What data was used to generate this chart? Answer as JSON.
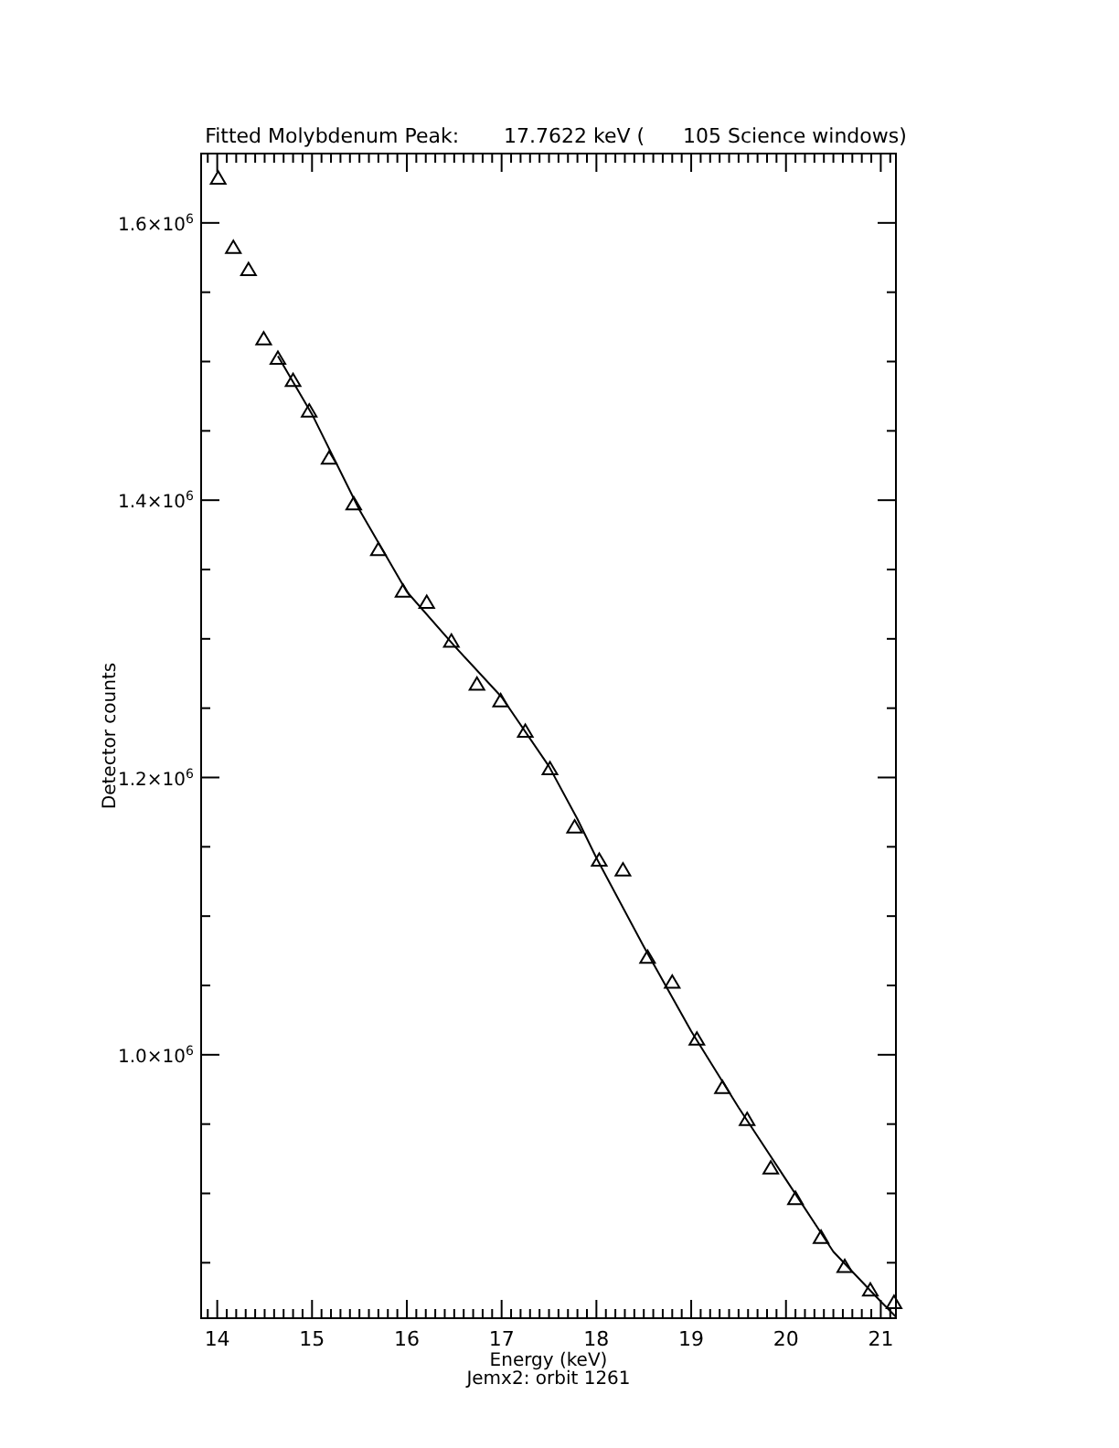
{
  "chart_data": {
    "type": "scatter",
    "title": "Fitted Molybdenum Peak:       17.7622 keV (      105 Science windows)",
    "xlabel": "Energy (keV)",
    "ylabel": "Detector counts",
    "annotations": [
      "Jemx2: orbit 1261"
    ],
    "xlim": [
      13.83,
      21.16
    ],
    "ylim": [
      810000,
      1650000
    ],
    "xticks": [
      {
        "value": 13.9,
        "label": null
      },
      14,
      {
        "value": 14.1,
        "label": null
      },
      {
        "value": 14.2,
        "label": null
      },
      {
        "value": 14.3,
        "label": null
      },
      {
        "value": 14.4,
        "label": null
      },
      {
        "value": 14.5,
        "label": null
      },
      {
        "value": 14.6,
        "label": null
      },
      {
        "value": 14.7,
        "label": null
      },
      {
        "value": 14.8,
        "label": null
      },
      {
        "value": 14.9,
        "label": null
      },
      15,
      {
        "value": 15.1,
        "label": null
      },
      {
        "value": 15.2,
        "label": null
      },
      {
        "value": 15.3,
        "label": null
      },
      {
        "value": 15.4,
        "label": null
      },
      {
        "value": 15.5,
        "label": null
      },
      {
        "value": 15.6,
        "label": null
      },
      {
        "value": 15.7,
        "label": null
      },
      {
        "value": 15.8,
        "label": null
      },
      {
        "value": 15.9,
        "label": null
      },
      16,
      {
        "value": 16.1,
        "label": null
      },
      {
        "value": 16.2,
        "label": null
      },
      {
        "value": 16.3,
        "label": null
      },
      {
        "value": 16.4,
        "label": null
      },
      {
        "value": 16.5,
        "label": null
      },
      {
        "value": 16.6,
        "label": null
      },
      {
        "value": 16.7,
        "label": null
      },
      {
        "value": 16.8,
        "label": null
      },
      {
        "value": 16.9,
        "label": null
      },
      17,
      {
        "value": 17.1,
        "label": null
      },
      {
        "value": 17.2,
        "label": null
      },
      {
        "value": 17.3,
        "label": null
      },
      {
        "value": 17.4,
        "label": null
      },
      {
        "value": 17.5,
        "label": null
      },
      {
        "value": 17.6,
        "label": null
      },
      {
        "value": 17.7,
        "label": null
      },
      {
        "value": 17.8,
        "label": null
      },
      {
        "value": 17.9,
        "label": null
      },
      18,
      {
        "value": 18.1,
        "label": null
      },
      {
        "value": 18.2,
        "label": null
      },
      {
        "value": 18.3,
        "label": null
      },
      {
        "value": 18.4,
        "label": null
      },
      {
        "value": 18.5,
        "label": null
      },
      {
        "value": 18.6,
        "label": null
      },
      {
        "value": 18.7,
        "label": null
      },
      {
        "value": 18.8,
        "label": null
      },
      {
        "value": 18.9,
        "label": null
      },
      19,
      {
        "value": 19.1,
        "label": null
      },
      {
        "value": 19.2,
        "label": null
      },
      {
        "value": 19.3,
        "label": null
      },
      {
        "value": 19.4,
        "label": null
      },
      {
        "value": 19.5,
        "label": null
      },
      {
        "value": 19.6,
        "label": null
      },
      {
        "value": 19.7,
        "label": null
      },
      {
        "value": 19.8,
        "label": null
      },
      {
        "value": 19.9,
        "label": null
      },
      20,
      {
        "value": 20.1,
        "label": null
      },
      {
        "value": 20.2,
        "label": null
      },
      {
        "value": 20.3,
        "label": null
      },
      {
        "value": 20.4,
        "label": null
      },
      {
        "value": 20.5,
        "label": null
      },
      {
        "value": 20.6,
        "label": null
      },
      {
        "value": 20.7,
        "label": null
      },
      {
        "value": 20.8,
        "label": null
      },
      {
        "value": 20.9,
        "label": null
      },
      21,
      {
        "value": 21.1,
        "label": null
      }
    ],
    "yticks": [
      {
        "value": 850000,
        "label": null
      },
      {
        "value": 900000,
        "label": null
      },
      {
        "value": 950000,
        "label": null
      },
      {
        "value": 1000000,
        "label": "1.0×10$^{6}$"
      },
      {
        "value": 1050000,
        "label": null
      },
      {
        "value": 1100000,
        "label": null
      },
      {
        "value": 1150000,
        "label": null
      },
      {
        "value": 1200000,
        "label": "1.2×10$^{6}$"
      },
      {
        "value": 1250000,
        "label": null
      },
      {
        "value": 1300000,
        "label": null
      },
      {
        "value": 1350000,
        "label": null
      },
      {
        "value": 1400000,
        "label": "1.4×10$^{6}$"
      },
      {
        "value": 1450000,
        "label": null
      },
      {
        "value": 1500000,
        "label": null
      },
      {
        "value": 1550000,
        "label": null
      },
      {
        "value": 1600000,
        "label": "1.6×10$^{6}$"
      },
      {
        "value": 1650000,
        "label": null
      }
    ],
    "marker": "triangle",
    "grid": false,
    "series": [
      {
        "color": "#000000",
        "x": [
          14.01,
          14.17,
          14.33,
          14.49,
          14.64,
          14.8,
          14.97,
          15.18,
          15.44,
          15.7,
          15.96,
          16.21,
          16.47,
          16.74,
          16.99,
          17.25,
          17.51,
          17.77,
          18.03,
          18.28,
          18.54,
          18.8,
          19.06,
          19.33,
          19.59,
          19.84,
          20.1,
          20.37,
          20.62,
          20.89,
          21.14
        ],
        "values": [
          1632000,
          1582000,
          1566000,
          1516000,
          1502000,
          1486000,
          1464000,
          1430000,
          1397000,
          1364000,
          1334000,
          1326000,
          1298000,
          1267000,
          1255000,
          1233000,
          1206000,
          1164000,
          1140000,
          1133000,
          1070000,
          1052000,
          1011000,
          976000,
          953000,
          918000,
          896000,
          868000,
          847000,
          830000,
          821000
        ]
      },
      {
        "type": "line",
        "color": "#000000",
        "marker": "none",
        "x": [
          14.64,
          15.0,
          15.5,
          16.0,
          16.5,
          17.0,
          17.5,
          17.8,
          18.0,
          18.5,
          19.0,
          19.5,
          20.0,
          20.5,
          21.0,
          21.16
        ],
        "values": [
          1504000,
          1462000,
          1393000,
          1334000,
          1295000,
          1258000,
          1208000,
          1170000,
          1142000,
          1078000,
          1017000,
          962000,
          910000,
          858000,
          822000,
          811000
        ]
      }
    ]
  }
}
